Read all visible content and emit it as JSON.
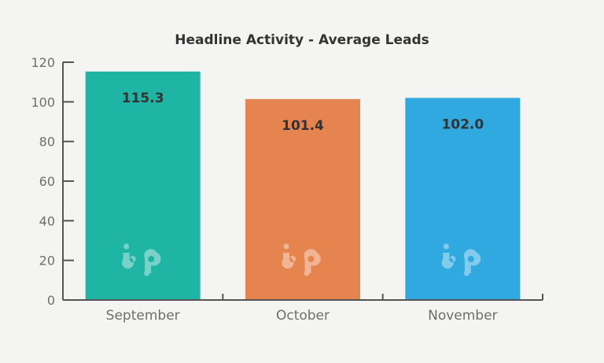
{
  "chart_data": {
    "type": "bar",
    "title": "Headline Activity - Average Leads",
    "categories": [
      "September",
      "October",
      "November"
    ],
    "values": [
      115.3,
      101.4,
      102.0
    ],
    "data_labels": [
      "115.3",
      "101.4",
      "102.0"
    ],
    "colors": [
      "#1fb5a4",
      "#e5844e",
      "#30a8e0"
    ],
    "ylim": [
      0,
      120
    ],
    "yticks": [
      0,
      20,
      40,
      60,
      80,
      100,
      120
    ],
    "xlabel": "",
    "ylabel": "",
    "grid": false,
    "legend": "none",
    "watermark_icon": "bp-logo-icon",
    "axis_color": "#555555"
  }
}
